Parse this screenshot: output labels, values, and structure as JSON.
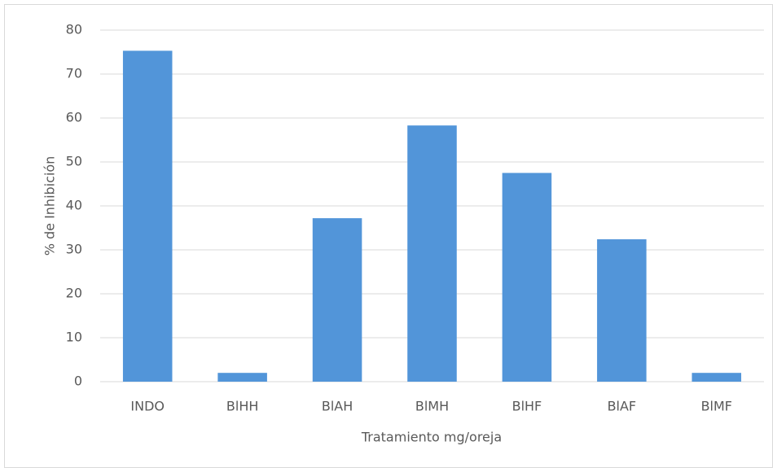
{
  "chart_data": {
    "type": "bar",
    "x_label": "Tratamiento mg/oreja",
    "y_label": "% de Inhibición",
    "categories": [
      "INDO",
      "BlHH",
      "BlAH",
      "BlMH",
      "BlHF",
      "BlAF",
      "BlMF"
    ],
    "values": [
      75.3,
      2,
      37.2,
      58.3,
      47.5,
      32.4,
      2
    ],
    "color": "#5295d9",
    "ylim": [
      0,
      80
    ],
    "yticks": [
      0,
      10,
      20,
      30,
      40,
      50,
      60,
      70,
      80
    ],
    "grid": true
  }
}
